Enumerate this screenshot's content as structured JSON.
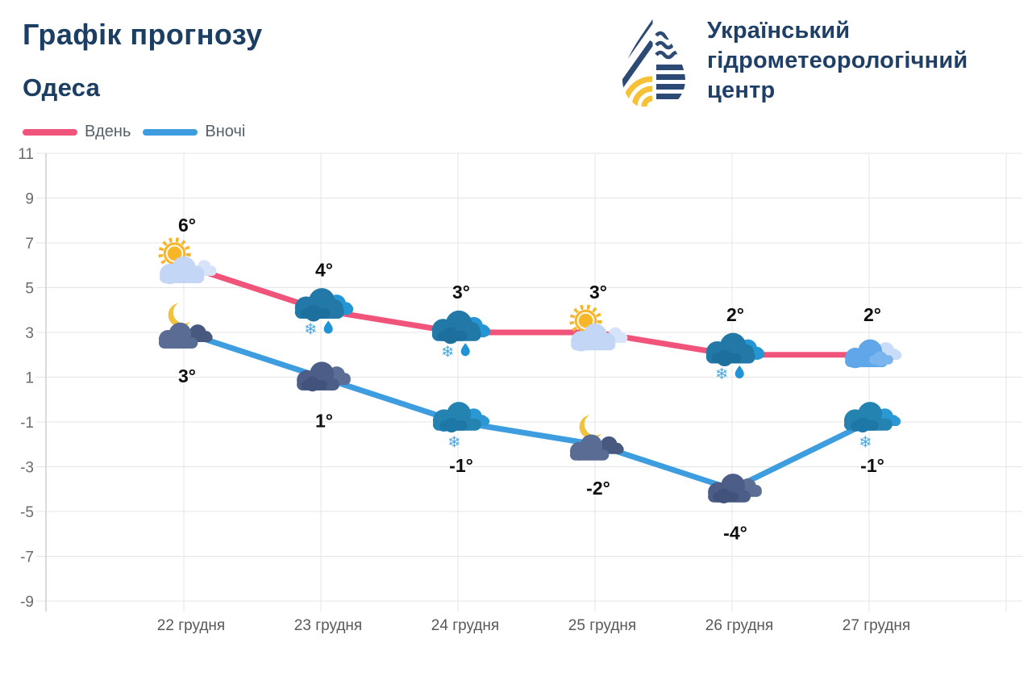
{
  "header": {
    "title": "Графік прогнозу",
    "subtitle": "Одеса",
    "logo": {
      "org_name_lines": [
        "Український",
        "гідрометеорологічний",
        "центр"
      ],
      "navy": "#2c4a73",
      "yellow": "#f5c136"
    }
  },
  "legend": [
    {
      "label": "Вдень",
      "color": "#f0547a"
    },
    {
      "label": "Вночі",
      "color": "#3d9dde"
    }
  ],
  "chart_data": {
    "type": "line",
    "title": "Графік прогнозу — Одеса",
    "categories": [
      "22 грудня",
      "23 грудня",
      "24 грудня",
      "25 грудня",
      "26 грудня",
      "27 грудня"
    ],
    "series": [
      {
        "name": "Вдень",
        "color": "#f0547a",
        "label_position": "above",
        "values": [
          6,
          4,
          3,
          3,
          2,
          2
        ],
        "labels": [
          "6°",
          "4°",
          "3°",
          "3°",
          "2°",
          "2°"
        ],
        "icons": [
          "sun-cloud",
          "clouds-sleet",
          "clouds-sleet",
          "sun-cloud",
          "clouds-sleet",
          "clouds-light"
        ]
      },
      {
        "name": "Вночі",
        "color": "#3d9dde",
        "label_position": "below",
        "values": [
          3,
          1,
          -1,
          -2,
          -4,
          -1
        ],
        "labels": [
          "3°",
          "1°",
          "-1°",
          "-2°",
          "-4°",
          "-1°"
        ],
        "icons": [
          "moon-clouds",
          "clouds-dark",
          "clouds-snow",
          "moon-clouds",
          "clouds-dark",
          "clouds-snow"
        ]
      }
    ],
    "unit": "°",
    "xlabel": "",
    "ylabel": "",
    "ylim": [
      -9,
      11
    ],
    "yticks": [
      11,
      9,
      7,
      5,
      3,
      1,
      -1,
      -3,
      -5,
      -7,
      -9
    ],
    "grid": true,
    "legend_position": "top-left"
  }
}
